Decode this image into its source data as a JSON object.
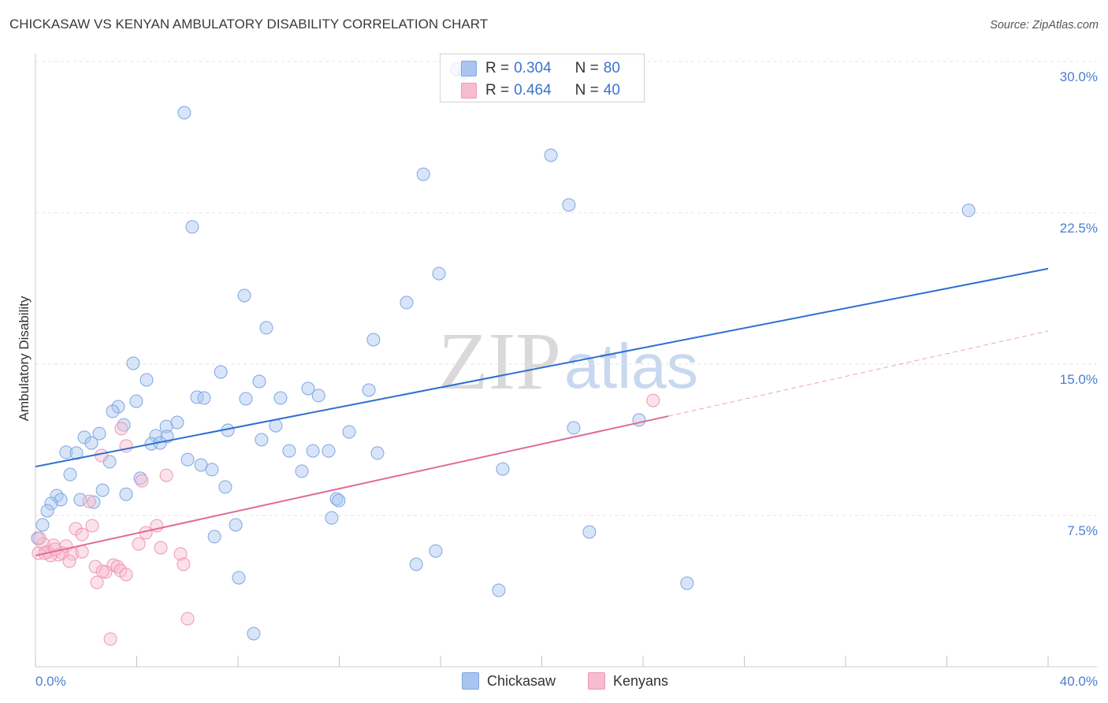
{
  "header": {
    "source": "Source: ZipAtlas.com"
  },
  "watermark": {
    "part1": "ZIP",
    "part2": "atlas"
  },
  "legend": {
    "r_label": "R =",
    "n_label": "N ="
  },
  "chart_data": {
    "type": "scatter",
    "title": "CHICKASAW VS KENYAN AMBULATORY DISABILITY CORRELATION CHART",
    "xlabel": "",
    "ylabel": "Ambulatory Disability",
    "xlim": [
      0,
      40
    ],
    "ylim": [
      0,
      30
    ],
    "grid": true,
    "legend_position": "top-center",
    "x_ticks": [
      0,
      4,
      8,
      12,
      16,
      20,
      24,
      28,
      32,
      36,
      40
    ],
    "x_tick_labels": [
      {
        "value": 0,
        "label": "0.0%"
      },
      {
        "value": 40,
        "label": "40.0%"
      }
    ],
    "y_ticks": [
      {
        "value": 30,
        "label": "30.0%"
      },
      {
        "value": 22.5,
        "label": "22.5%"
      },
      {
        "value": 15,
        "label": "15.0%"
      },
      {
        "value": 7.5,
        "label": "7.5%"
      }
    ],
    "series": [
      {
        "name": "Chickasaw",
        "r": "0.304",
        "n": "80",
        "point_fill": "#a9c5ef",
        "point_stroke": "#7ea6e2",
        "line_color": "#2f6fd0",
        "trend": {
          "x": [
            0,
            40
          ],
          "y": [
            9.92,
            19.73
          ]
        },
        "points": [
          [
            16.65,
            29.61
          ],
          [
            16.96,
            29.45
          ],
          [
            5.88,
            27.46
          ],
          [
            20.36,
            25.35
          ],
          [
            15.32,
            24.41
          ],
          [
            21.07,
            22.89
          ],
          [
            36.86,
            22.62
          ],
          [
            6.19,
            21.8
          ],
          [
            15.94,
            19.49
          ],
          [
            8.25,
            18.4
          ],
          [
            14.66,
            18.05
          ],
          [
            9.12,
            16.8
          ],
          [
            13.35,
            16.21
          ],
          [
            3.86,
            15.04
          ],
          [
            7.32,
            14.61
          ],
          [
            4.39,
            14.22
          ],
          [
            8.84,
            14.14
          ],
          [
            10.77,
            13.79
          ],
          [
            13.17,
            13.71
          ],
          [
            6.38,
            13.36
          ],
          [
            6.66,
            13.32
          ],
          [
            8.31,
            13.28
          ],
          [
            9.68,
            13.32
          ],
          [
            11.18,
            13.44
          ],
          [
            3.98,
            13.16
          ],
          [
            3.27,
            12.89
          ],
          [
            3.05,
            12.66
          ],
          [
            5.6,
            12.11
          ],
          [
            3.49,
            11.99
          ],
          [
            5.17,
            11.91
          ],
          [
            9.49,
            11.95
          ],
          [
            7.6,
            11.72
          ],
          [
            2.52,
            11.56
          ],
          [
            12.39,
            11.64
          ],
          [
            1.93,
            11.37
          ],
          [
            4.76,
            11.45
          ],
          [
            5.2,
            11.41
          ],
          [
            8.93,
            11.25
          ],
          [
            2.21,
            11.09
          ],
          [
            4.58,
            11.05
          ],
          [
            4.92,
            11.09
          ],
          [
            21.26,
            11.84
          ],
          [
            23.84,
            12.23
          ],
          [
            1.21,
            10.63
          ],
          [
            1.62,
            10.59
          ],
          [
            10.02,
            10.7
          ],
          [
            10.96,
            10.7
          ],
          [
            11.58,
            10.7
          ],
          [
            13.51,
            10.59
          ],
          [
            6.01,
            10.27
          ],
          [
            2.93,
            10.16
          ],
          [
            6.54,
            10.0
          ],
          [
            6.97,
            9.77
          ],
          [
            10.52,
            9.69
          ],
          [
            18.46,
            9.8
          ],
          [
            1.37,
            9.53
          ],
          [
            4.14,
            9.34
          ],
          [
            7.5,
            8.91
          ],
          [
            2.65,
            8.75
          ],
          [
            3.58,
            8.55
          ],
          [
            0.84,
            8.48
          ],
          [
            11.89,
            8.32
          ],
          [
            11.98,
            8.24
          ],
          [
            1.0,
            8.28
          ],
          [
            0.62,
            8.09
          ],
          [
            1.77,
            8.28
          ],
          [
            2.3,
            8.16
          ],
          [
            0.47,
            7.73
          ],
          [
            11.7,
            7.38
          ],
          [
            0.28,
            7.03
          ],
          [
            7.91,
            7.03
          ],
          [
            21.88,
            6.68
          ],
          [
            7.07,
            6.45
          ],
          [
            0.09,
            6.37
          ],
          [
            15.81,
            5.74
          ],
          [
            15.04,
            5.08
          ],
          [
            8.03,
            4.41
          ],
          [
            18.3,
            3.79
          ],
          [
            25.74,
            4.14
          ],
          [
            8.62,
            1.64
          ]
        ]
      },
      {
        "name": "Kenyans",
        "r": "0.464",
        "n": "40",
        "point_fill": "#f7bcd0",
        "point_stroke": "#ee97b6",
        "line_color": "#e06b97",
        "trend": {
          "x": [
            0,
            25
          ],
          "y": [
            5.51,
            12.42
          ]
        },
        "trend_extension": {
          "x": [
            25,
            40
          ],
          "y": [
            12.42,
            16.64
          ]
        },
        "points": [
          [
            24.4,
            13.2
          ],
          [
            3.39,
            11.8
          ],
          [
            3.58,
            10.94
          ],
          [
            2.61,
            10.47
          ],
          [
            5.17,
            9.49
          ],
          [
            4.2,
            9.22
          ],
          [
            2.12,
            8.2
          ],
          [
            2.24,
            6.99
          ],
          [
            1.59,
            6.84
          ],
          [
            4.79,
            6.99
          ],
          [
            4.36,
            6.64
          ],
          [
            1.84,
            6.56
          ],
          [
            4.08,
            6.09
          ],
          [
            4.95,
            5.9
          ],
          [
            0.72,
            6.02
          ],
          [
            1.21,
            5.98
          ],
          [
            0.31,
            6.09
          ],
          [
            0.16,
            6.37
          ],
          [
            0.47,
            5.7
          ],
          [
            1.06,
            5.63
          ],
          [
            0.9,
            5.55
          ],
          [
            1.46,
            5.59
          ],
          [
            5.73,
            5.59
          ],
          [
            0.12,
            5.63
          ],
          [
            0.59,
            5.51
          ],
          [
            1.34,
            5.23
          ],
          [
            5.85,
            5.08
          ],
          [
            3.08,
            5.04
          ],
          [
            2.37,
            4.96
          ],
          [
            3.24,
            4.96
          ],
          [
            3.36,
            4.77
          ],
          [
            2.77,
            4.69
          ],
          [
            3.58,
            4.57
          ],
          [
            2.43,
            4.18
          ],
          [
            6.01,
            2.38
          ],
          [
            2.96,
            1.37
          ],
          [
            0.37,
            5.63
          ],
          [
            2.65,
            4.73
          ],
          [
            0.78,
            5.82
          ],
          [
            1.84,
            5.7
          ]
        ]
      }
    ]
  }
}
